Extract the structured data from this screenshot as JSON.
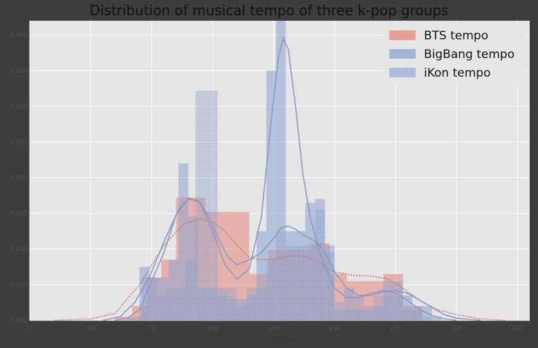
{
  "chart_data": {
    "type": "bar",
    "title": "Distribution of musical tempo of three k-pop groups",
    "xlabel": "tempo",
    "ylabel": "",
    "xlim": [
      25,
      230
    ],
    "ylim": [
      0,
      0.042
    ],
    "xticks": [
      25,
      50,
      75,
      100,
      125,
      150,
      175,
      200,
      225
    ],
    "yticks": [
      0.0,
      0.005,
      0.01,
      0.015,
      0.02,
      0.025,
      0.03,
      0.035,
      0.04
    ],
    "ytick_labels": [
      "0.000",
      "0.005",
      "0.010",
      "0.015",
      "0.020",
      "0.025",
      "0.030",
      "0.035",
      "0.040"
    ],
    "grid": true,
    "legend_position": "top-right",
    "series": [
      {
        "name": "BTS tempo",
        "color": "#e8877a",
        "pattern": "solid",
        "bins": [
          {
            "x0": 60,
            "x1": 67,
            "y": 0.0005
          },
          {
            "x0": 67,
            "x1": 73,
            "y": 0.002
          },
          {
            "x0": 73,
            "x1": 79,
            "y": 0.006
          },
          {
            "x0": 79,
            "x1": 85,
            "y": 0.0085
          },
          {
            "x0": 85,
            "x1": 91,
            "y": 0.0172
          },
          {
            "x0": 91,
            "x1": 97,
            "y": 0.0172
          },
          {
            "x0": 97,
            "x1": 105,
            "y": 0.0152
          },
          {
            "x0": 105,
            "x1": 115,
            "y": 0.0152
          },
          {
            "x0": 115,
            "x1": 123,
            "y": 0.0065
          },
          {
            "x0": 123,
            "x1": 140,
            "y": 0.0099
          },
          {
            "x0": 140,
            "x1": 148,
            "y": 0.0108
          },
          {
            "x0": 148,
            "x1": 155,
            "y": 0.0065
          },
          {
            "x0": 155,
            "x1": 165,
            "y": 0.0055
          },
          {
            "x0": 165,
            "x1": 170,
            "y": 0.0055
          },
          {
            "x0": 170,
            "x1": 178,
            "y": 0.0065
          },
          {
            "x0": 178,
            "x1": 186,
            "y": 0.002
          }
        ],
        "kde": [
          [
            35,
            0
          ],
          [
            50,
            0.0002
          ],
          [
            60,
            0.001
          ],
          [
            70,
            0.005
          ],
          [
            80,
            0.0105
          ],
          [
            88,
            0.0135
          ],
          [
            95,
            0.0142
          ],
          [
            100,
            0.0138
          ],
          [
            105,
            0.0125
          ],
          [
            110,
            0.0105
          ],
          [
            115,
            0.0088
          ],
          [
            120,
            0.0085
          ],
          [
            125,
            0.0086
          ],
          [
            130,
            0.0089
          ],
          [
            135,
            0.0091
          ],
          [
            140,
            0.0088
          ],
          [
            145,
            0.0078
          ],
          [
            150,
            0.0068
          ],
          [
            158,
            0.0063
          ],
          [
            165,
            0.0062
          ],
          [
            172,
            0.0058
          ],
          [
            178,
            0.0045
          ],
          [
            185,
            0.0028
          ],
          [
            192,
            0.0015
          ],
          [
            200,
            0.0008
          ],
          [
            210,
            0.0002
          ],
          [
            220,
            0
          ]
        ]
      },
      {
        "name": "BigBang tempo",
        "color": "#8ea4d2",
        "pattern": "solid",
        "bins": [
          {
            "x0": 70,
            "x1": 74,
            "y": 0.0075
          },
          {
            "x0": 74,
            "x1": 78,
            "y": 0.006
          },
          {
            "x0": 78,
            "x1": 82,
            "y": 0.006
          },
          {
            "x0": 82,
            "x1": 86,
            "y": 0.0085
          },
          {
            "x0": 86,
            "x1": 90,
            "y": 0.022
          },
          {
            "x0": 90,
            "x1": 94,
            "y": 0.0145
          },
          {
            "x0": 94,
            "x1": 98,
            "y": 0.0045
          },
          {
            "x0": 98,
            "x1": 102,
            "y": 0.0045
          },
          {
            "x0": 102,
            "x1": 106,
            "y": 0.0045
          },
          {
            "x0": 106,
            "x1": 110,
            "y": 0.003
          },
          {
            "x0": 110,
            "x1": 114,
            "y": 0.003
          },
          {
            "x0": 114,
            "x1": 118,
            "y": 0.0035
          },
          {
            "x0": 118,
            "x1": 122,
            "y": 0.0125
          },
          {
            "x0": 122,
            "x1": 126,
            "y": 0.035
          },
          {
            "x0": 126,
            "x1": 130,
            "y": 0.0425
          },
          {
            "x0": 130,
            "x1": 134,
            "y": 0.0125
          },
          {
            "x0": 134,
            "x1": 138,
            "y": 0.0125
          },
          {
            "x0": 138,
            "x1": 142,
            "y": 0.0165
          },
          {
            "x0": 142,
            "x1": 146,
            "y": 0.017
          },
          {
            "x0": 146,
            "x1": 150,
            "y": 0.0105
          },
          {
            "x0": 150,
            "x1": 154,
            "y": 0.0015
          },
          {
            "x0": 154,
            "x1": 158,
            "y": 0.0045
          },
          {
            "x0": 158,
            "x1": 162,
            "y": 0.0015
          },
          {
            "x0": 162,
            "x1": 166,
            "y": 0.0015
          },
          {
            "x0": 166,
            "x1": 170,
            "y": 0.002
          },
          {
            "x0": 170,
            "x1": 174,
            "y": 0.0055
          },
          {
            "x0": 174,
            "x1": 178,
            "y": 0.0055
          },
          {
            "x0": 178,
            "x1": 182,
            "y": 0.0035
          },
          {
            "x0": 182,
            "x1": 186,
            "y": 0.002
          },
          {
            "x0": 186,
            "x1": 190,
            "y": 0.002
          },
          {
            "x0": 190,
            "x1": 194,
            "y": 0.0005
          }
        ],
        "kde": [
          [
            60,
            0
          ],
          [
            65,
            0.0003
          ],
          [
            70,
            0.0015
          ],
          [
            75,
            0.0055
          ],
          [
            80,
            0.0095
          ],
          [
            85,
            0.0148
          ],
          [
            90,
            0.0172
          ],
          [
            95,
            0.0165
          ],
          [
            100,
            0.0125
          ],
          [
            105,
            0.0078
          ],
          [
            110,
            0.0058
          ],
          [
            115,
            0.0072
          ],
          [
            120,
            0.0145
          ],
          [
            124,
            0.028
          ],
          [
            127,
            0.037
          ],
          [
            129,
            0.0395
          ],
          [
            131,
            0.038
          ],
          [
            134,
            0.03
          ],
          [
            137,
            0.0205
          ],
          [
            140,
            0.0145
          ],
          [
            143,
            0.0105
          ],
          [
            146,
            0.0075
          ],
          [
            150,
            0.0045
          ],
          [
            155,
            0.0032
          ],
          [
            160,
            0.0032
          ],
          [
            165,
            0.0038
          ],
          [
            170,
            0.0042
          ],
          [
            175,
            0.0038
          ],
          [
            180,
            0.0028
          ],
          [
            185,
            0.0015
          ],
          [
            190,
            0.0007
          ],
          [
            195,
            0.0002
          ],
          [
            200,
            0
          ]
        ]
      },
      {
        "name": "iKon tempo",
        "color": "#8ea4d2",
        "pattern": "dotted",
        "bins": [
          {
            "x0": 65,
            "x1": 71,
            "y": 0.0005
          },
          {
            "x0": 71,
            "x1": 77,
            "y": 0.006
          },
          {
            "x0": 77,
            "x1": 81,
            "y": 0.0035
          },
          {
            "x0": 81,
            "x1": 85,
            "y": 0.0045
          },
          {
            "x0": 85,
            "x1": 89,
            "y": 0.0045
          },
          {
            "x0": 89,
            "x1": 93,
            "y": 0.0085
          },
          {
            "x0": 93,
            "x1": 102,
            "y": 0.0322
          },
          {
            "x0": 102,
            "x1": 106,
            "y": 0.0035
          },
          {
            "x0": 106,
            "x1": 110,
            "y": 0.0045
          },
          {
            "x0": 110,
            "x1": 114,
            "y": 0.002
          },
          {
            "x0": 114,
            "x1": 118,
            "y": 0.0045
          },
          {
            "x0": 118,
            "x1": 122,
            "y": 0.0045
          },
          {
            "x0": 122,
            "x1": 126,
            "y": 0.0085
          },
          {
            "x0": 126,
            "x1": 130,
            "y": 0.0125
          },
          {
            "x0": 130,
            "x1": 134,
            "y": 0.0105
          },
          {
            "x0": 134,
            "x1": 138,
            "y": 0.0105
          },
          {
            "x0": 138,
            "x1": 142,
            "y": 0.0105
          },
          {
            "x0": 142,
            "x1": 146,
            "y": 0.0155
          },
          {
            "x0": 146,
            "x1": 150,
            "y": 0.0095
          },
          {
            "x0": 150,
            "x1": 154,
            "y": 0.0025
          },
          {
            "x0": 154,
            "x1": 158,
            "y": 0.0015
          },
          {
            "x0": 158,
            "x1": 162,
            "y": 0.0035
          },
          {
            "x0": 162,
            "x1": 166,
            "y": 0.002
          },
          {
            "x0": 166,
            "x1": 170,
            "y": 0.0035
          },
          {
            "x0": 170,
            "x1": 174,
            "y": 0.0035
          },
          {
            "x0": 174,
            "x1": 178,
            "y": 0.0035
          },
          {
            "x0": 178,
            "x1": 182,
            "y": 0.0015
          },
          {
            "x0": 182,
            "x1": 186,
            "y": 0.0015
          },
          {
            "x0": 186,
            "x1": 190,
            "y": 0.0005
          }
        ],
        "kde": [
          [
            55,
            0
          ],
          [
            62,
            0.0005
          ],
          [
            68,
            0.0025
          ],
          [
            74,
            0.006
          ],
          [
            80,
            0.011
          ],
          [
            86,
            0.0155
          ],
          [
            90,
            0.017
          ],
          [
            94,
            0.0168
          ],
          [
            98,
            0.0148
          ],
          [
            102,
            0.0118
          ],
          [
            106,
            0.009
          ],
          [
            110,
            0.0078
          ],
          [
            115,
            0.0085
          ],
          [
            120,
            0.0095
          ],
          [
            125,
            0.0115
          ],
          [
            128,
            0.013
          ],
          [
            131,
            0.0132
          ],
          [
            134,
            0.0128
          ],
          [
            137,
            0.012
          ],
          [
            140,
            0.0115
          ],
          [
            143,
            0.0108
          ],
          [
            146,
            0.0095
          ],
          [
            150,
            0.0068
          ],
          [
            155,
            0.0045
          ],
          [
            160,
            0.0035
          ],
          [
            165,
            0.0035
          ],
          [
            170,
            0.004
          ],
          [
            175,
            0.0042
          ],
          [
            180,
            0.0038
          ],
          [
            185,
            0.0028
          ],
          [
            190,
            0.0018
          ],
          [
            195,
            0.0008
          ],
          [
            200,
            0.0003
          ],
          [
            210,
            0
          ]
        ]
      }
    ]
  }
}
